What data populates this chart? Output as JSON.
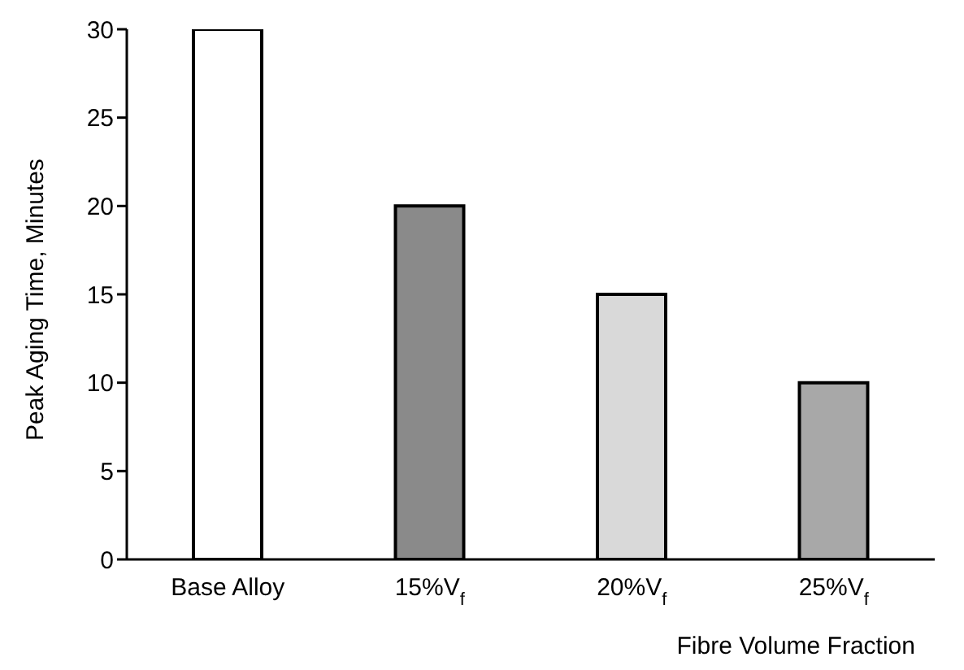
{
  "chart_data": {
    "type": "bar",
    "xlabel": "Fibre Volume Fraction",
    "ylabel": "Peak Aging Time, Minutes",
    "categories": [
      "Base Alloy",
      "15%V$_{f}$",
      "20%V$_{f}$",
      "25%V$_{f}$"
    ],
    "values": [
      30,
      20,
      15,
      10
    ],
    "colors": [
      "#ffffff",
      "#8a8a8a",
      "#d9d9d9",
      "#a8a8a8"
    ],
    "ylim": [
      0,
      30
    ],
    "yticks": [
      0,
      5,
      10,
      15,
      20,
      25,
      30
    ],
    "grid": false,
    "legend": false
  }
}
